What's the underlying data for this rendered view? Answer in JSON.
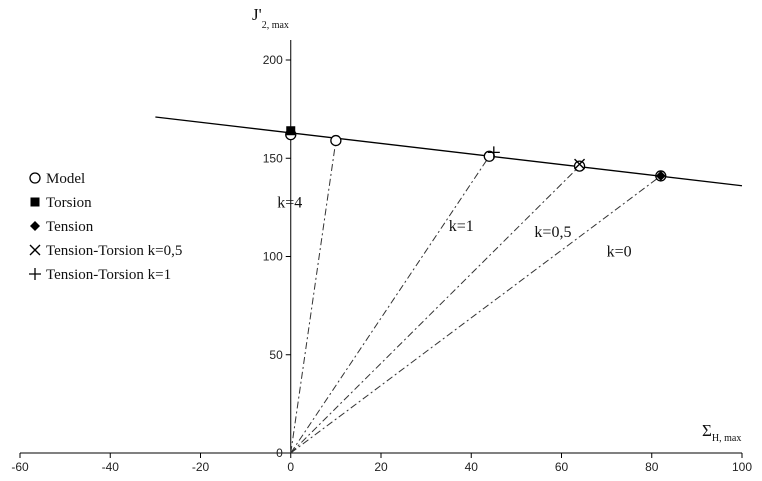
{
  "chart_data": {
    "type": "scatter",
    "title": "",
    "xlabel": "Σ",
    "xlabel_sub": "H, max",
    "ylabel": "J'",
    "ylabel_sub": "2, max",
    "xlim": [
      -60,
      100
    ],
    "ylim": [
      0,
      200
    ],
    "x_ticks": [
      -60,
      -40,
      -20,
      0,
      20,
      40,
      60,
      80,
      100
    ],
    "y_ticks": [
      0,
      50,
      100,
      150,
      200
    ],
    "grid": false,
    "legend_placement": "left",
    "series": [
      {
        "name": "Model",
        "marker": "circle-open",
        "points": [
          [
            0,
            162
          ],
          [
            10,
            159
          ],
          [
            44,
            151
          ],
          [
            64,
            146
          ],
          [
            82,
            141
          ]
        ]
      },
      {
        "name": "Torsion",
        "marker": "square-filled",
        "points": [
          [
            0,
            164
          ]
        ]
      },
      {
        "name": "Tension",
        "marker": "diamond-filled",
        "points": [
          [
            82,
            141
          ]
        ]
      },
      {
        "name": "Tension-Torsion k=0,5",
        "marker": "x",
        "points": [
          [
            64,
            147
          ]
        ]
      },
      {
        "name": "Tension-Torsion k=1",
        "marker": "plus",
        "points": [
          [
            45,
            153
          ]
        ]
      }
    ],
    "fit_line": {
      "points": [
        [
          -30,
          171
        ],
        [
          100,
          136
        ]
      ]
    },
    "load_paths": [
      {
        "label": "k=4",
        "end": [
          10,
          159
        ],
        "label_at": [
          -3,
          125
        ]
      },
      {
        "label": "k=1",
        "end": [
          44,
          151
        ],
        "label_at": [
          35,
          113
        ]
      },
      {
        "label": "k=0,5",
        "end": [
          64,
          146
        ],
        "label_at": [
          54,
          110
        ]
      },
      {
        "label": "k=0",
        "end": [
          82,
          141
        ],
        "label_at": [
          70,
          100
        ]
      }
    ]
  }
}
